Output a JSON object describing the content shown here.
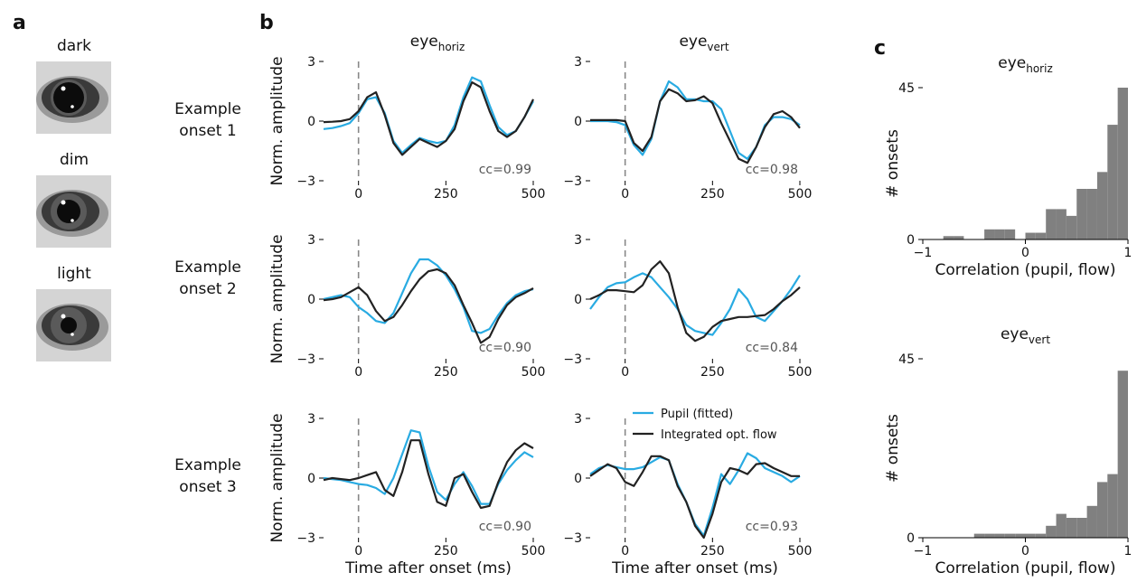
{
  "panel_labels": [
    "a",
    "b",
    "c"
  ],
  "eye_images": [
    {
      "label": "dark"
    },
    {
      "label": "dim"
    },
    {
      "label": "light"
    }
  ],
  "row_labels": [
    [
      "Example",
      "onset 1"
    ],
    [
      "Example",
      "onset 2"
    ],
    [
      "Example",
      "onset 3"
    ]
  ],
  "chart_data": [
    {
      "type": "line",
      "title": "eye",
      "title_sub": "horiz",
      "ylabel": "Norm. amplitude",
      "annotation": "cc=0.99",
      "x": [
        -100,
        -75,
        -50,
        -25,
        0,
        25,
        50,
        75,
        100,
        125,
        150,
        175,
        200,
        225,
        250,
        275,
        300,
        325,
        350,
        375,
        400,
        425,
        450,
        475,
        500
      ],
      "xlim": [
        -100,
        500
      ],
      "xticks": [
        0,
        250,
        500
      ],
      "ylim": [
        -3,
        3
      ],
      "yticks": [
        {
          "value": -3,
          "label": "−3"
        },
        0,
        3
      ],
      "series": [
        {
          "color": "#29abe2",
          "values": [
            -0.4,
            -0.35,
            -0.25,
            -0.1,
            0.4,
            1.1,
            1.2,
            0.4,
            -1.0,
            -1.6,
            -1.2,
            -0.85,
            -1.0,
            -1.1,
            -1.0,
            -0.2,
            1.2,
            2.2,
            2.0,
            0.8,
            -0.3,
            -0.7,
            -0.5,
            0.2,
            1.0
          ]
        },
        {
          "color": "#222222",
          "values": [
            -0.05,
            -0.03,
            0,
            0.1,
            0.5,
            1.2,
            1.45,
            0.3,
            -1.1,
            -1.7,
            -1.3,
            -0.9,
            -1.1,
            -1.3,
            -1.0,
            -0.4,
            1.0,
            1.95,
            1.7,
            0.5,
            -0.5,
            -0.8,
            -0.5,
            0.2,
            1.1
          ]
        }
      ]
    },
    {
      "type": "line",
      "title": "eye",
      "title_sub": "vert",
      "annotation": "cc=0.98",
      "x": [
        -100,
        -75,
        -50,
        -25,
        0,
        25,
        50,
        75,
        100,
        125,
        150,
        175,
        200,
        225,
        250,
        275,
        300,
        325,
        350,
        375,
        400,
        425,
        450,
        475,
        500
      ],
      "xlim": [
        -100,
        500
      ],
      "xticks": [
        0,
        250,
        500
      ],
      "ylim": [
        -3,
        3
      ],
      "yticks": [
        {
          "value": -3,
          "label": "−3"
        },
        0,
        3
      ],
      "series": [
        {
          "color": "#29abe2",
          "values": [
            0,
            0,
            0,
            -0.05,
            -0.2,
            -1.2,
            -1.7,
            -0.9,
            1.0,
            2.0,
            1.7,
            1.1,
            1.1,
            1.0,
            1.0,
            0.6,
            -0.5,
            -1.6,
            -1.9,
            -1.3,
            -0.2,
            0.2,
            0.2,
            0.1,
            -0.2
          ]
        },
        {
          "color": "#222222",
          "values": [
            0.05,
            0.05,
            0.05,
            0.05,
            0,
            -1.1,
            -1.5,
            -0.8,
            1.0,
            1.6,
            1.4,
            1.0,
            1.05,
            1.25,
            0.9,
            -0.1,
            -1.0,
            -1.9,
            -2.1,
            -1.3,
            -0.3,
            0.35,
            0.5,
            0.2,
            -0.35
          ]
        }
      ]
    },
    {
      "type": "line",
      "ylabel": "Norm. amplitude",
      "annotation": "cc=0.90",
      "x": [
        -100,
        -75,
        -50,
        -25,
        0,
        25,
        50,
        75,
        100,
        125,
        150,
        175,
        200,
        225,
        250,
        275,
        300,
        325,
        350,
        375,
        400,
        425,
        450,
        475,
        500
      ],
      "xlim": [
        -100,
        500
      ],
      "xticks": [
        0,
        250,
        500
      ],
      "ylim": [
        -3,
        3
      ],
      "yticks": [
        {
          "value": -3,
          "label": "−3"
        },
        0,
        3
      ],
      "series": [
        {
          "color": "#29abe2",
          "values": [
            0,
            0.1,
            0.2,
            0.1,
            -0.4,
            -0.7,
            -1.1,
            -1.2,
            -0.7,
            0.3,
            1.3,
            2.0,
            2.0,
            1.7,
            1.2,
            0.5,
            -0.4,
            -1.6,
            -1.7,
            -1.5,
            -0.8,
            -0.2,
            0.2,
            0.4,
            0.5
          ]
        },
        {
          "color": "#222222",
          "values": [
            -0.05,
            0,
            0.1,
            0.35,
            0.6,
            0.2,
            -0.6,
            -1.1,
            -0.9,
            -0.3,
            0.4,
            1.0,
            1.4,
            1.5,
            1.3,
            0.7,
            -0.3,
            -1.2,
            -2.2,
            -1.9,
            -1.0,
            -0.3,
            0.1,
            0.3,
            0.55
          ]
        }
      ]
    },
    {
      "type": "line",
      "annotation": "cc=0.84",
      "x": [
        -100,
        -75,
        -50,
        -25,
        0,
        25,
        50,
        75,
        100,
        125,
        150,
        175,
        200,
        225,
        250,
        275,
        300,
        325,
        350,
        375,
        400,
        425,
        450,
        475,
        500
      ],
      "xlim": [
        -100,
        500
      ],
      "xticks": [
        0,
        250,
        500
      ],
      "ylim": [
        -3,
        3
      ],
      "yticks": [
        {
          "value": -3,
          "label": "−3"
        },
        0,
        3
      ],
      "series": [
        {
          "color": "#29abe2",
          "values": [
            -0.5,
            0.1,
            0.6,
            0.8,
            0.85,
            1.1,
            1.3,
            1.1,
            0.6,
            0.1,
            -0.5,
            -1.3,
            -1.6,
            -1.7,
            -1.8,
            -1.2,
            -0.5,
            0.5,
            0,
            -0.9,
            -1.1,
            -0.6,
            -0.1,
            0.5,
            1.2
          ]
        },
        {
          "color": "#222222",
          "values": [
            0,
            0.2,
            0.45,
            0.45,
            0.4,
            0.35,
            0.7,
            1.5,
            1.9,
            1.3,
            -0.4,
            -1.7,
            -2.1,
            -1.9,
            -1.4,
            -1.1,
            -1.0,
            -0.9,
            -0.9,
            -0.85,
            -0.8,
            -0.5,
            -0.1,
            0.2,
            0.6
          ]
        }
      ]
    },
    {
      "type": "line",
      "ylabel": "Norm. amplitude",
      "xlabel": "Time after onset (ms)",
      "annotation": "cc=0.90",
      "x": [
        -100,
        -75,
        -50,
        -25,
        0,
        25,
        50,
        75,
        100,
        125,
        150,
        175,
        200,
        225,
        250,
        275,
        300,
        325,
        350,
        375,
        400,
        425,
        450,
        475,
        500
      ],
      "xlim": [
        -100,
        500
      ],
      "xticks": [
        0,
        250,
        500
      ],
      "ylim": [
        -3,
        3
      ],
      "yticks": [
        {
          "value": -3,
          "label": "−3"
        },
        0,
        3
      ],
      "series": [
        {
          "color": "#29abe2",
          "values": [
            0,
            -0.05,
            -0.1,
            -0.2,
            -0.3,
            -0.35,
            -0.5,
            -0.8,
            0,
            1.2,
            2.4,
            2.3,
            0.6,
            -0.7,
            -1.1,
            -0.3,
            0.3,
            -0.4,
            -1.3,
            -1.3,
            -0.3,
            0.4,
            0.9,
            1.3,
            1.05
          ]
        },
        {
          "color": "#222222",
          "values": [
            -0.1,
            0,
            -0.05,
            -0.1,
            0,
            0.15,
            0.3,
            -0.6,
            -0.9,
            0.3,
            1.9,
            1.9,
            0.2,
            -1.2,
            -1.4,
            0,
            0.2,
            -0.7,
            -1.5,
            -1.4,
            -0.2,
            0.8,
            1.4,
            1.75,
            1.5
          ]
        }
      ]
    },
    {
      "type": "line",
      "xlabel": "Time after onset (ms)",
      "annotation": "cc=0.93",
      "x": [
        -100,
        -75,
        -50,
        -25,
        0,
        25,
        50,
        75,
        100,
        125,
        150,
        175,
        200,
        225,
        250,
        275,
        300,
        325,
        350,
        375,
        400,
        425,
        450,
        475,
        500
      ],
      "xlim": [
        -100,
        500
      ],
      "xticks": [
        0,
        250,
        500
      ],
      "ylim": [
        -3,
        3
      ],
      "yticks": [
        {
          "value": -3,
          "label": "−3"
        },
        0,
        3
      ],
      "series": [
        {
          "name": "Pupil (fitted)",
          "color": "#29abe2",
          "values": [
            0.2,
            0.5,
            0.65,
            0.55,
            0.45,
            0.45,
            0.55,
            0.8,
            1.05,
            0.9,
            -0.3,
            -1.2,
            -2.3,
            -2.9,
            -1.5,
            0.2,
            -0.3,
            0.4,
            1.25,
            1.0,
            0.5,
            0.3,
            0.1,
            -0.2,
            0.1
          ]
        },
        {
          "name": "Integrated opt. flow",
          "color": "#222222",
          "values": [
            0.1,
            0.4,
            0.7,
            0.5,
            -0.2,
            -0.4,
            0.3,
            1.1,
            1.1,
            0.9,
            -0.4,
            -1.2,
            -2.4,
            -3.0,
            -1.8,
            -0.2,
            0.5,
            0.4,
            0.2,
            0.7,
            0.75,
            0.5,
            0.3,
            0.1,
            0.1
          ]
        }
      ]
    },
    {
      "type": "histogram",
      "title": "eye",
      "title_sub": "horiz",
      "ylabel": "# onsets",
      "xlabel": "Correlation (pupil, flow)",
      "color": "#808080",
      "bins": [
        -1,
        -0.9,
        -0.8,
        -0.7,
        -0.6,
        -0.5,
        -0.4,
        -0.3,
        -0.2,
        -0.1,
        0,
        0.1,
        0.2,
        0.3,
        0.4,
        0.5,
        0.6,
        0.7,
        0.8,
        0.9,
        1
      ],
      "counts": [
        0,
        0,
        1,
        1,
        0,
        0,
        3,
        3,
        3,
        0,
        2,
        2,
        9,
        9,
        7,
        15,
        15,
        20,
        34,
        45
      ],
      "xlim": [
        -1,
        1
      ],
      "xticks": [
        {
          "value": -1,
          "label": "−1"
        },
        0,
        1
      ],
      "ylim": [
        0,
        45
      ],
      "yticks": [
        0,
        45
      ]
    },
    {
      "type": "histogram",
      "title": "eye",
      "title_sub": "vert",
      "ylabel": "# onsets",
      "xlabel": "Correlation (pupil, flow)",
      "color": "#808080",
      "bins": [
        -1,
        -0.9,
        -0.8,
        -0.7,
        -0.6,
        -0.5,
        -0.4,
        -0.3,
        -0.2,
        -0.1,
        0,
        0.1,
        0.2,
        0.3,
        0.4,
        0.5,
        0.6,
        0.7,
        0.8,
        0.9,
        1
      ],
      "counts": [
        0,
        0,
        0,
        0,
        0,
        1,
        1,
        1,
        1,
        1,
        1,
        1,
        3,
        6,
        5,
        5,
        8,
        14,
        16,
        42
      ],
      "xlim": [
        -1,
        1
      ],
      "xticks": [
        {
          "value": -1,
          "label": "−1"
        },
        0,
        1
      ],
      "ylim": [
        0,
        45
      ],
      "yticks": [
        0,
        45
      ]
    }
  ]
}
